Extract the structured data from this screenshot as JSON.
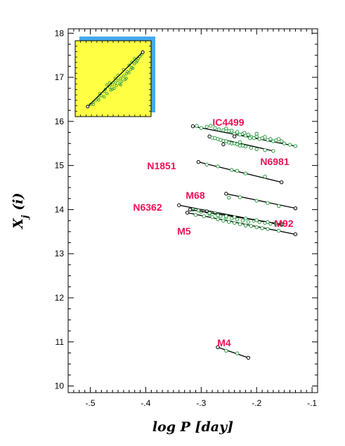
{
  "chart_data": {
    "type": "scatter",
    "xlabel": "log P [day]",
    "ylabel": "X_j (i)",
    "ylabel_main": "X",
    "ylabel_sub": "j",
    "ylabel_suffix": " (i)",
    "xlim": [
      -0.54,
      -0.09
    ],
    "ylim": [
      9.85,
      18.1
    ],
    "xticks": [
      -0.5,
      -0.4,
      -0.3,
      -0.2,
      -0.1
    ],
    "xtick_labels": [
      "-.5",
      "-.4",
      "-.3",
      "-.2",
      "-.1"
    ],
    "yticks": [
      10,
      11,
      12,
      13,
      14,
      15,
      16,
      17,
      18
    ],
    "ytick_labels": [
      "10",
      "11",
      "12",
      "13",
      "14",
      "15",
      "16",
      "17",
      "18"
    ],
    "grid": false,
    "colors": {
      "points": "#2e9a44",
      "labels": "#ee1155",
      "fit_line": "#000000",
      "inset_fill": "#ffff44",
      "inset_shadow": "#44aaee"
    },
    "series": [
      {
        "label": "IC4499",
        "fit": [
          [
            -0.315,
            15.89
          ],
          [
            -0.13,
            15.44
          ]
        ],
        "points": [
          [
            -0.315,
            15.89
          ],
          [
            -0.308,
            15.9
          ],
          [
            -0.3,
            15.85
          ],
          [
            -0.29,
            15.88
          ],
          [
            -0.283,
            15.9
          ],
          [
            -0.275,
            15.85
          ],
          [
            -0.268,
            15.82
          ],
          [
            -0.26,
            15.8
          ],
          [
            -0.255,
            15.84
          ],
          [
            -0.25,
            15.78
          ],
          [
            -0.245,
            15.79
          ],
          [
            -0.24,
            15.72
          ],
          [
            -0.235,
            15.76
          ],
          [
            -0.23,
            15.7
          ],
          [
            -0.225,
            15.72
          ],
          [
            -0.22,
            15.68
          ],
          [
            -0.215,
            15.7
          ],
          [
            -0.21,
            15.65
          ],
          [
            -0.205,
            15.62
          ],
          [
            -0.2,
            15.66
          ],
          [
            -0.195,
            15.6
          ],
          [
            -0.19,
            15.62
          ],
          [
            -0.185,
            15.65
          ],
          [
            -0.18,
            15.58
          ],
          [
            -0.175,
            15.6
          ],
          [
            -0.17,
            15.55
          ],
          [
            -0.165,
            15.57
          ],
          [
            -0.16,
            15.6
          ],
          [
            -0.155,
            15.55
          ],
          [
            -0.15,
            15.5
          ],
          [
            -0.14,
            15.47
          ],
          [
            -0.13,
            15.44
          ],
          [
            -0.222,
            15.74
          ],
          [
            -0.2,
            15.72
          ],
          [
            -0.212,
            15.62
          ],
          [
            -0.24,
            15.66
          ]
        ]
      },
      {
        "label": "N6981",
        "fit": [
          [
            -0.285,
            15.66
          ],
          [
            -0.17,
            15.33
          ]
        ],
        "points": [
          [
            -0.285,
            15.66
          ],
          [
            -0.28,
            15.63
          ],
          [
            -0.275,
            15.62
          ],
          [
            -0.27,
            15.6
          ],
          [
            -0.265,
            15.58
          ],
          [
            -0.26,
            15.56
          ],
          [
            -0.255,
            15.55
          ],
          [
            -0.25,
            15.52
          ],
          [
            -0.245,
            15.5
          ],
          [
            -0.24,
            15.5
          ],
          [
            -0.235,
            15.48
          ],
          [
            -0.23,
            15.45
          ],
          [
            -0.225,
            15.45
          ],
          [
            -0.22,
            15.43
          ],
          [
            -0.21,
            15.4
          ],
          [
            -0.2,
            15.37
          ],
          [
            -0.185,
            15.35
          ],
          [
            -0.17,
            15.33
          ],
          [
            -0.23,
            15.53
          ],
          [
            -0.26,
            15.48
          ]
        ]
      },
      {
        "label": "N1851",
        "fit": [
          [
            -0.305,
            15.08
          ],
          [
            -0.155,
            14.62
          ]
        ],
        "points": [
          [
            -0.305,
            15.08
          ],
          [
            -0.29,
            15.02
          ],
          [
            -0.27,
            14.98
          ],
          [
            -0.245,
            14.9
          ],
          [
            -0.235,
            14.88
          ],
          [
            -0.22,
            14.82
          ],
          [
            -0.185,
            14.75
          ],
          [
            -0.155,
            14.62
          ]
        ]
      },
      {
        "label": "M68",
        "fit": [
          [
            -0.255,
            14.36
          ],
          [
            -0.13,
            14.03
          ]
        ],
        "points": [
          [
            -0.255,
            14.36
          ],
          [
            -0.25,
            14.27
          ],
          [
            -0.23,
            14.28
          ],
          [
            -0.2,
            14.2
          ],
          [
            -0.18,
            14.15
          ],
          [
            -0.16,
            14.08
          ],
          [
            -0.13,
            14.03
          ]
        ]
      },
      {
        "label": "N6362",
        "fit": [
          [
            -0.34,
            14.1
          ],
          [
            -0.155,
            13.65
          ]
        ],
        "points": [
          [
            -0.34,
            14.1
          ],
          [
            -0.315,
            14.0
          ],
          [
            -0.3,
            13.95
          ],
          [
            -0.285,
            13.9
          ],
          [
            -0.275,
            13.92
          ],
          [
            -0.265,
            13.85
          ],
          [
            -0.255,
            13.82
          ],
          [
            -0.245,
            13.8
          ],
          [
            -0.235,
            13.78
          ],
          [
            -0.225,
            13.75
          ],
          [
            -0.215,
            13.72
          ],
          [
            -0.205,
            13.75
          ],
          [
            -0.195,
            13.72
          ],
          [
            -0.185,
            13.7
          ],
          [
            -0.175,
            13.68
          ],
          [
            -0.165,
            13.66
          ],
          [
            -0.155,
            13.65
          ],
          [
            -0.29,
            13.96
          ]
        ]
      },
      {
        "label": "M92",
        "fit": [
          [
            -0.32,
            14.0
          ],
          [
            -0.155,
            13.67
          ]
        ],
        "points": [
          [
            -0.32,
            14.0
          ],
          [
            -0.305,
            13.98
          ],
          [
            -0.285,
            13.92
          ],
          [
            -0.27,
            13.87
          ],
          [
            -0.255,
            13.85
          ],
          [
            -0.24,
            13.83
          ],
          [
            -0.22,
            13.8
          ],
          [
            -0.2,
            13.76
          ],
          [
            -0.18,
            13.72
          ],
          [
            -0.165,
            13.7
          ],
          [
            -0.155,
            13.67
          ]
        ]
      },
      {
        "label": "M5",
        "fit": [
          [
            -0.325,
            13.93
          ],
          [
            -0.13,
            13.44
          ]
        ],
        "points": [
          [
            -0.325,
            13.93
          ],
          [
            -0.31,
            13.88
          ],
          [
            -0.295,
            13.85
          ],
          [
            -0.28,
            13.83
          ],
          [
            -0.27,
            13.78
          ],
          [
            -0.26,
            13.75
          ],
          [
            -0.25,
            13.72
          ],
          [
            -0.24,
            13.7
          ],
          [
            -0.23,
            13.67
          ],
          [
            -0.22,
            13.64
          ],
          [
            -0.21,
            13.63
          ],
          [
            -0.2,
            13.6
          ],
          [
            -0.19,
            13.58
          ],
          [
            -0.18,
            13.56
          ],
          [
            -0.16,
            13.52
          ],
          [
            -0.13,
            13.44
          ]
        ]
      },
      {
        "label": "M4",
        "fit": [
          [
            -0.27,
            10.88
          ],
          [
            -0.215,
            10.64
          ]
        ],
        "points": [
          [
            -0.27,
            10.88
          ],
          [
            -0.255,
            10.8
          ],
          [
            -0.235,
            10.74
          ],
          [
            -0.215,
            10.64
          ]
        ]
      }
    ],
    "inset": {
      "fit": [
        [
          -0.5,
          16.4
        ],
        [
          -0.4,
          17.65
        ]
      ],
      "points": [
        [
          -0.5,
          16.4
        ],
        [
          -0.495,
          16.45
        ],
        [
          -0.49,
          16.5
        ],
        [
          -0.485,
          16.55
        ],
        [
          -0.48,
          16.6
        ],
        [
          -0.478,
          16.7
        ],
        [
          -0.475,
          16.65
        ],
        [
          -0.47,
          16.75
        ],
        [
          -0.468,
          16.8
        ],
        [
          -0.465,
          16.7
        ],
        [
          -0.46,
          16.85
        ],
        [
          -0.458,
          16.78
        ],
        [
          -0.455,
          16.9
        ],
        [
          -0.452,
          16.82
        ],
        [
          -0.45,
          16.95
        ],
        [
          -0.448,
          16.88
        ],
        [
          -0.445,
          17.0
        ],
        [
          -0.442,
          16.92
        ],
        [
          -0.44,
          17.05
        ],
        [
          -0.438,
          16.98
        ],
        [
          -0.435,
          17.1
        ],
        [
          -0.432,
          17.02
        ],
        [
          -0.43,
          17.15
        ],
        [
          -0.428,
          17.2
        ],
        [
          -0.425,
          17.18
        ],
        [
          -0.422,
          17.25
        ],
        [
          -0.42,
          17.3
        ],
        [
          -0.418,
          17.28
        ],
        [
          -0.415,
          17.38
        ],
        [
          -0.412,
          17.42
        ],
        [
          -0.41,
          17.45
        ],
        [
          -0.408,
          17.5
        ],
        [
          -0.405,
          17.55
        ],
        [
          -0.402,
          17.6
        ],
        [
          -0.45,
          17.05
        ],
        [
          -0.46,
          16.95
        ],
        [
          -0.44,
          16.9
        ],
        [
          -0.43,
          17.05
        ],
        [
          -0.47,
          16.62
        ],
        [
          -0.42,
          17.42
        ],
        [
          -0.435,
          17.25
        ],
        [
          -0.455,
          16.8
        ],
        [
          -0.425,
          17.35
        ],
        [
          -0.48,
          16.55
        ],
        [
          -0.445,
          17.12
        ],
        [
          -0.415,
          17.5
        ],
        [
          -0.465,
          16.9
        ],
        [
          -0.49,
          16.45
        ]
      ]
    }
  }
}
